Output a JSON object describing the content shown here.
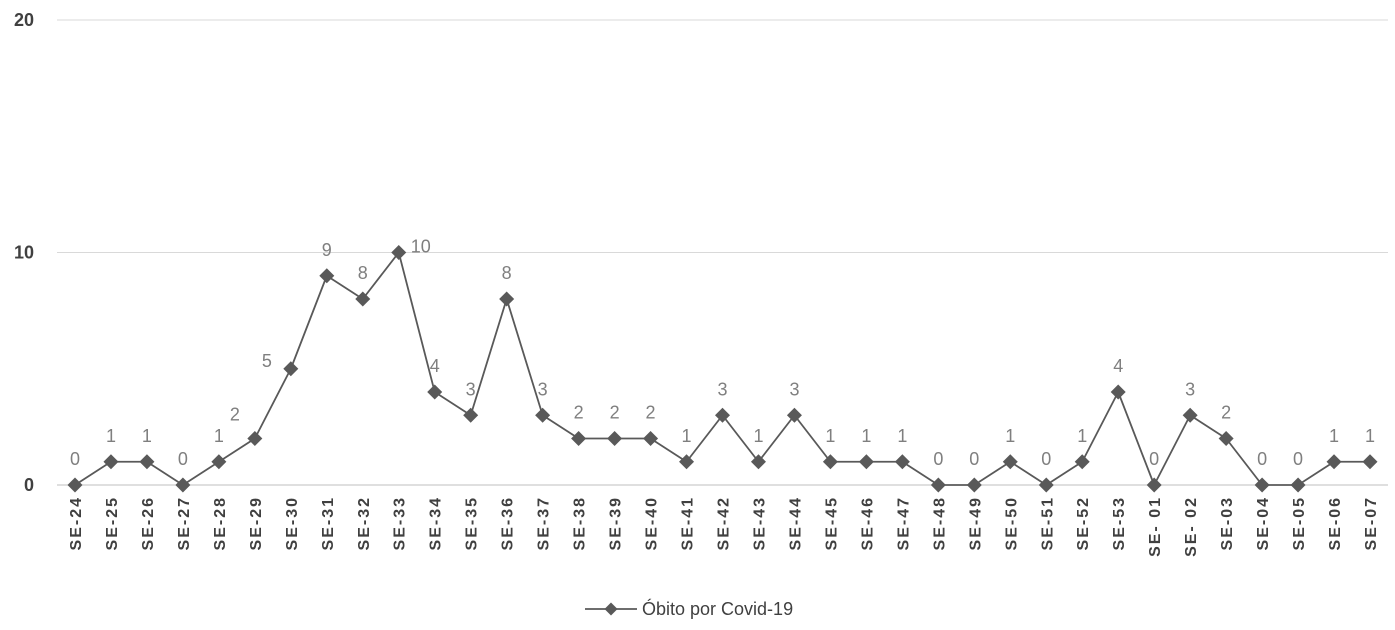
{
  "chart_data": {
    "type": "line",
    "title": "",
    "xlabel": "",
    "ylabel": "",
    "ylim": [
      0,
      20
    ],
    "yticks": [
      "0",
      "10",
      "20"
    ],
    "grid": "horizontal",
    "legend_position": "bottom-center",
    "categories": [
      "SE-24",
      "SE-25",
      "SE-26",
      "SE-27",
      "SE-28",
      "SE-29",
      "SE-30",
      "SE-31",
      "SE-32",
      "SE-33",
      "SE-34",
      "SE-35",
      "SE-36",
      "SE-37",
      "SE-38",
      "SE-39",
      "SE-40",
      "SE-41",
      "SE-42",
      "SE-43",
      "SE-44",
      "SE-45",
      "SE-46",
      "SE-47",
      "SE-48",
      "SE-49",
      "SE-50",
      "SE-51",
      "SE-52",
      "SE-53",
      "SE- 01",
      "SE- 02",
      "SE-03",
      "SE-04",
      "SE-05",
      "SE-06",
      "SE-07"
    ],
    "series": [
      {
        "name": "Óbito por Covid-19",
        "values": [
          0,
          1,
          1,
          0,
          1,
          2,
          5,
          9,
          8,
          10,
          4,
          3,
          8,
          3,
          2,
          2,
          2,
          1,
          3,
          1,
          3,
          1,
          1,
          1,
          0,
          0,
          1,
          0,
          1,
          4,
          0,
          3,
          2,
          0,
          0,
          1,
          1
        ],
        "color": "#595959",
        "marker": "diamond"
      }
    ],
    "label_color": "#7f7f7f",
    "grid_color": "#d9d9d9"
  }
}
